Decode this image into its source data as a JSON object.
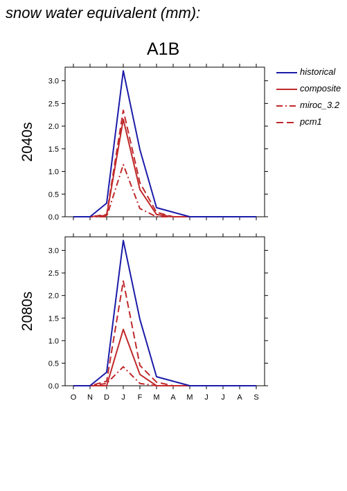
{
  "title": "snow water equivalent (mm):",
  "scenario": "A1B",
  "colors": {
    "historical": "#1a1aa8",
    "future": "#c0282a"
  },
  "legend": [
    {
      "label": "historical",
      "color": "#1a1aa8",
      "dash": "solid"
    },
    {
      "label": "composite",
      "color": "#c0282a",
      "dash": "solid"
    },
    {
      "label": "miroc_3.2",
      "color": "#c0282a",
      "dash": "dashdot"
    },
    {
      "label": "pcm1",
      "color": "#c0282a",
      "dash": "dash"
    }
  ],
  "chart_data": [
    {
      "type": "line",
      "row_label": "2040s",
      "categories": [
        "O",
        "N",
        "D",
        "J",
        "F",
        "M",
        "A",
        "M",
        "J",
        "J",
        "A",
        "S"
      ],
      "ylim": [
        0,
        3.3
      ],
      "yticks": [
        "0.0",
        "0.5",
        "1.0",
        "1.5",
        "2.0",
        "2.5",
        "3.0"
      ],
      "show_xticklabels": false,
      "series": [
        {
          "name": "historical",
          "values": [
            0,
            0,
            0.3,
            3.22,
            1.48,
            0.2,
            0.1,
            0,
            0,
            0,
            0,
            0
          ]
        },
        {
          "name": "composite",
          "values": [
            0,
            0,
            0.03,
            2.15,
            0.6,
            0.05,
            0,
            0,
            0,
            0,
            0,
            0
          ]
        },
        {
          "name": "miroc_3.2",
          "values": [
            0,
            0,
            0,
            1.15,
            0.18,
            0,
            0,
            0,
            0,
            0,
            0,
            0
          ]
        },
        {
          "name": "pcm1",
          "values": [
            0,
            0,
            0.05,
            2.35,
            0.75,
            0.1,
            0,
            0,
            0,
            0,
            0,
            0
          ]
        }
      ]
    },
    {
      "type": "line",
      "row_label": "2080s",
      "categories": [
        "O",
        "N",
        "D",
        "J",
        "F",
        "M",
        "A",
        "M",
        "J",
        "J",
        "A",
        "S"
      ],
      "ylim": [
        0,
        3.3
      ],
      "yticks": [
        "0.0",
        "0.5",
        "1.0",
        "1.5",
        "2.0",
        "2.5",
        "3.0"
      ],
      "show_xticklabels": true,
      "series": [
        {
          "name": "historical",
          "values": [
            0,
            0,
            0.3,
            3.22,
            1.47,
            0.2,
            0.1,
            0,
            0,
            0,
            0,
            0
          ]
        },
        {
          "name": "composite",
          "values": [
            0,
            0,
            0,
            1.25,
            0.25,
            0,
            0,
            0,
            0,
            0,
            0,
            0
          ]
        },
        {
          "name": "miroc_3.2",
          "values": [
            0,
            0,
            0.05,
            0.42,
            0.05,
            0,
            0,
            0,
            0,
            0,
            0,
            0
          ]
        },
        {
          "name": "pcm1",
          "values": [
            0,
            0,
            0.1,
            2.32,
            0.45,
            0.08,
            0,
            0,
            0,
            0,
            0,
            0
          ]
        }
      ]
    }
  ]
}
